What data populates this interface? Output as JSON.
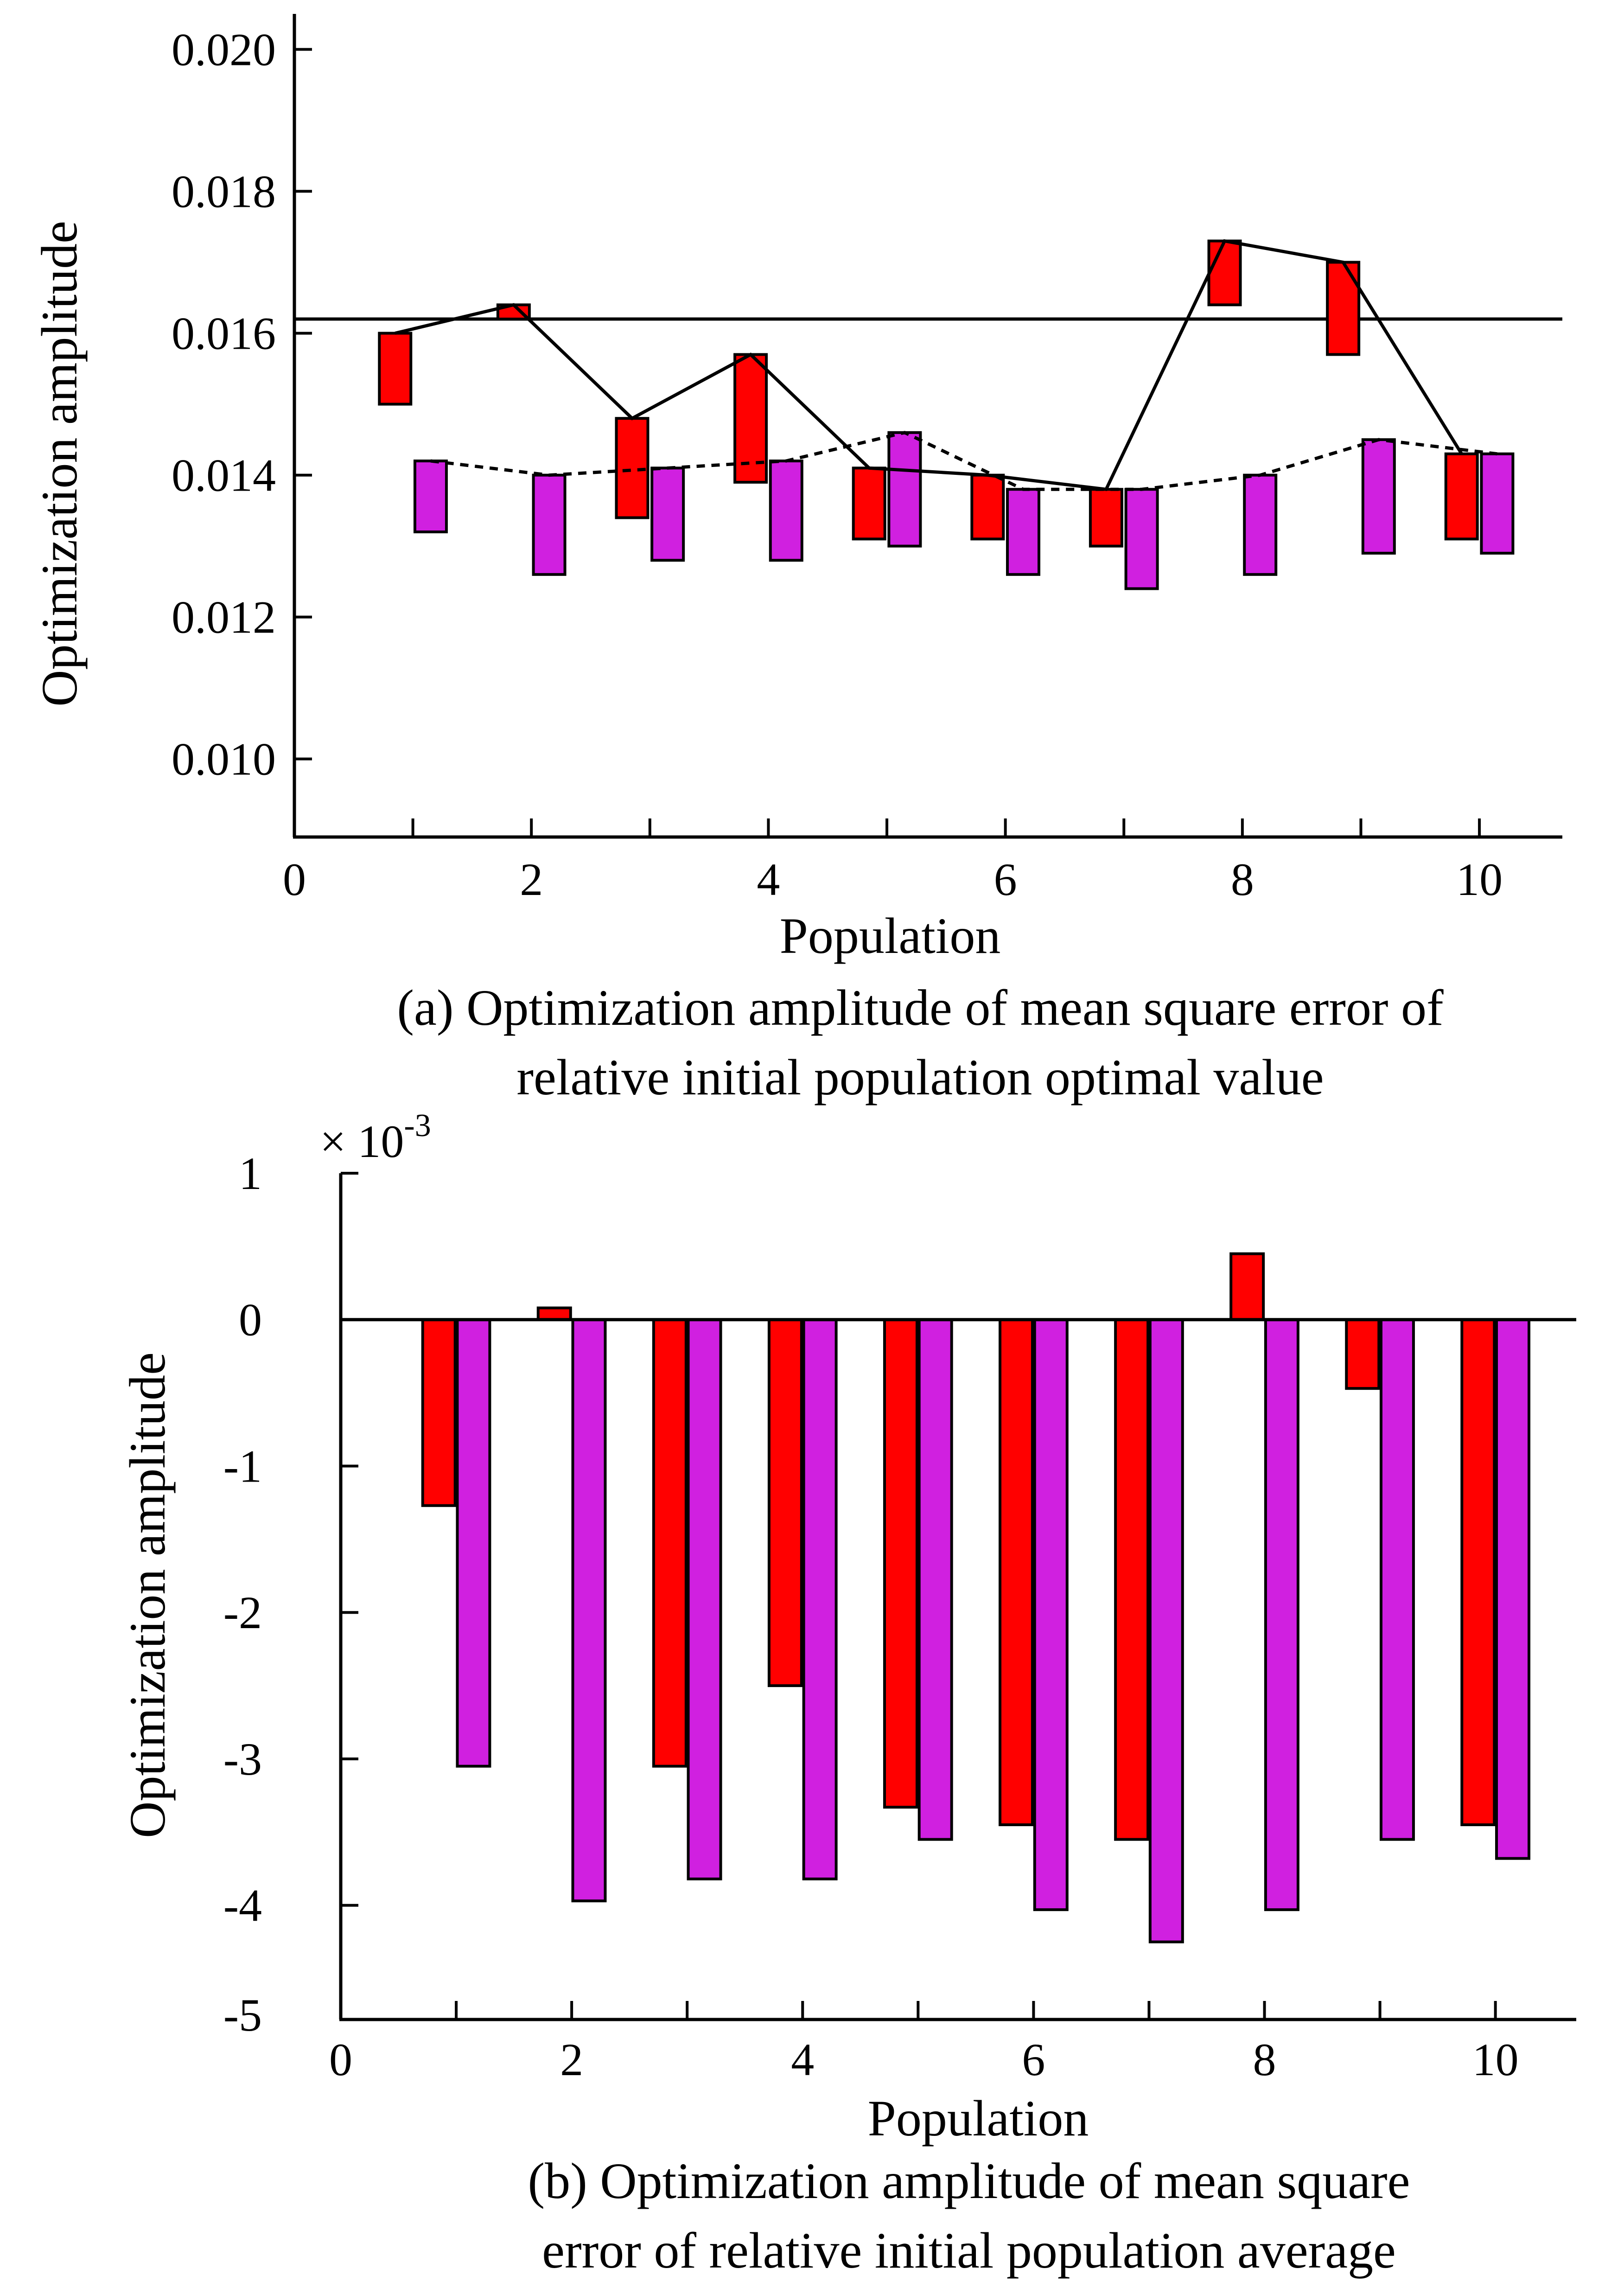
{
  "chart_data": [
    {
      "type": "floating-bar-line",
      "xlabel": "Population",
      "ylabel": "Optimization amplitude",
      "caption_lines": [
        "(a) Optimization amplitude of mean square error of",
        "relative initial population optimal value"
      ],
      "xlim": [
        0,
        10.7
      ],
      "ylim": [
        0.0089,
        0.0205
      ],
      "x_ticks": [
        "0",
        "2",
        "4",
        "6",
        "8",
        "10"
      ],
      "y_ticks": [
        "0.010",
        "0.012",
        "0.014",
        "0.016",
        "0.018",
        "0.020"
      ],
      "reference_line": 0.0162,
      "colors": {
        "red": "#ff0000",
        "magenta": "#d020e0"
      },
      "series": [
        {
          "color_key": "red",
          "line_style": "solid",
          "boxes": [
            {
              "x": 1,
              "low": 0.015,
              "high": 0.016
            },
            {
              "x": 2,
              "low": 0.0162,
              "high": 0.0164
            },
            {
              "x": 3,
              "low": 0.0134,
              "high": 0.0148
            },
            {
              "x": 4,
              "low": 0.0139,
              "high": 0.0157
            },
            {
              "x": 5,
              "low": 0.0131,
              "high": 0.0141
            },
            {
              "x": 6,
              "low": 0.0131,
              "high": 0.014
            },
            {
              "x": 7,
              "low": 0.013,
              "high": 0.0138
            },
            {
              "x": 8,
              "low": 0.0164,
              "high": 0.0173
            },
            {
              "x": 9,
              "low": 0.0157,
              "high": 0.017
            },
            {
              "x": 10,
              "low": 0.0131,
              "high": 0.0143
            }
          ]
        },
        {
          "color_key": "magenta",
          "line_style": "dashed",
          "boxes": [
            {
              "x": 1,
              "low": 0.0132,
              "high": 0.0142
            },
            {
              "x": 2,
              "low": 0.0126,
              "high": 0.014
            },
            {
              "x": 3,
              "low": 0.0128,
              "high": 0.0141
            },
            {
              "x": 4,
              "low": 0.0128,
              "high": 0.0142
            },
            {
              "x": 5,
              "low": 0.013,
              "high": 0.0146
            },
            {
              "x": 6,
              "low": 0.0126,
              "high": 0.0138
            },
            {
              "x": 7,
              "low": 0.0124,
              "high": 0.0138
            },
            {
              "x": 8,
              "low": 0.0126,
              "high": 0.014
            },
            {
              "x": 9,
              "low": 0.0129,
              "high": 0.0145
            },
            {
              "x": 10,
              "low": 0.0129,
              "high": 0.0143
            }
          ]
        }
      ]
    },
    {
      "type": "bar",
      "xlabel": "Population",
      "ylabel": "Optimization amplitude",
      "scale_label": "× 10",
      "scale_exponent": "-3",
      "caption_lines": [
        "(b) Optimization amplitude of mean square",
        "error of relative initial population average"
      ],
      "xlim": [
        0,
        10.7
      ],
      "ylim": [
        -4.78,
        1.0
      ],
      "x_ticks": [
        "0",
        "2",
        "4",
        "6",
        "8",
        "10"
      ],
      "y_ticks": [
        "1",
        "0",
        "-1",
        "-2",
        "-3",
        "-4",
        "-5"
      ],
      "categories": [
        1,
        2,
        3,
        4,
        5,
        6,
        7,
        8,
        9,
        10
      ],
      "colors": {
        "red": "#ff0000",
        "magenta": "#d020e0"
      },
      "series": [
        {
          "color_key": "red",
          "values": [
            -1.27,
            0.08,
            -3.05,
            -2.5,
            -3.33,
            -3.45,
            -3.55,
            0.45,
            -0.47,
            -3.45
          ]
        },
        {
          "color_key": "magenta",
          "values": [
            -3.05,
            -3.97,
            -3.82,
            -3.82,
            -3.55,
            -4.03,
            -4.25,
            -4.03,
            -3.55,
            -3.68
          ]
        }
      ]
    }
  ]
}
